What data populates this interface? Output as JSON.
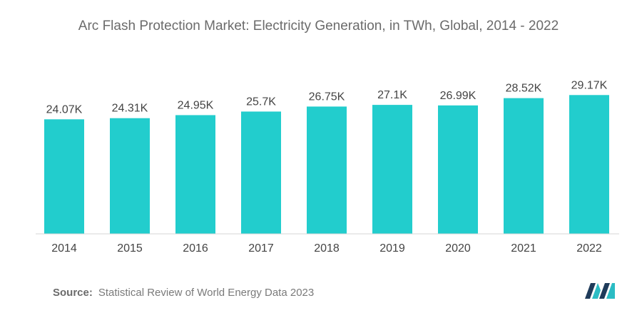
{
  "colors": {
    "bar": "#22cdcd",
    "axis": "#d6d6d6",
    "logo_dark": "#1f3b5a",
    "logo_teal": "#2bbcc4"
  },
  "logo_icon": "mordor-logo-icon",
  "chart_data": {
    "type": "bar",
    "title": "Arc Flash Protection Market: Electricity Generation, in TWh, Global, 2014 - 2022",
    "xlabel": "",
    "ylabel": "",
    "categories": [
      "2014",
      "2015",
      "2016",
      "2017",
      "2018",
      "2019",
      "2020",
      "2021",
      "2022"
    ],
    "values": [
      24.07,
      24.31,
      24.95,
      25.7,
      26.75,
      27.1,
      26.99,
      28.52,
      29.17
    ],
    "value_labels": [
      "24.07K",
      "24.31K",
      "24.95K",
      "25.7K",
      "26.75K",
      "27.1K",
      "26.99K",
      "28.52K",
      "29.17K"
    ],
    "grid": false,
    "legend": "none"
  },
  "source": {
    "label": "Source:",
    "text": "Statistical Review of World Energy Data 2023"
  }
}
